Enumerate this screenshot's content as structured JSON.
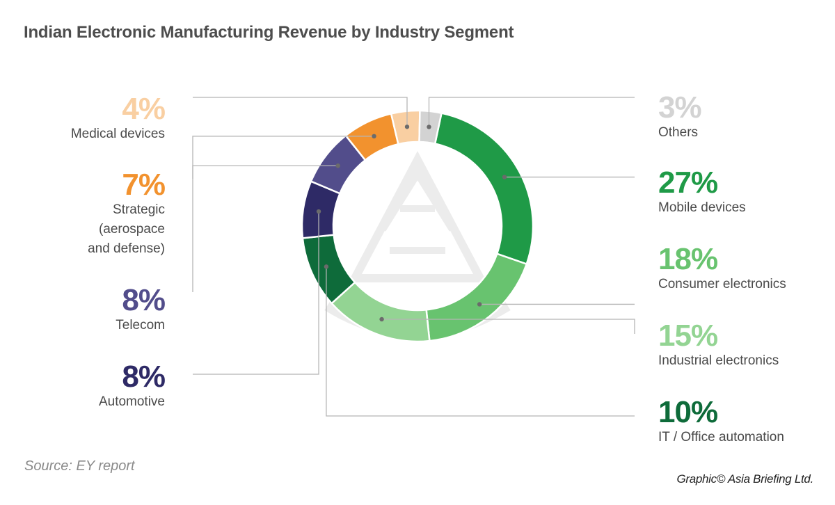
{
  "chart_data": {
    "type": "pie",
    "style": "donut",
    "title": "Indian Electronic Manufacturing Revenue by Industry Segment",
    "unit": "%",
    "slices": [
      {
        "label": "Mobile devices",
        "value": 27,
        "value_text": "27%",
        "color": "#1f9a47"
      },
      {
        "label": "Consumer electronics",
        "value": 18,
        "value_text": "18%",
        "color": "#68c36f"
      },
      {
        "label": "Industrial electronics",
        "value": 15,
        "value_text": "15%",
        "color": "#93d493"
      },
      {
        "label": "IT / Office automation",
        "value": 10,
        "value_text": "10%",
        "color": "#0e6b3a"
      },
      {
        "label": "Automotive",
        "value": 8,
        "value_text": "8%",
        "color": "#2e2a66"
      },
      {
        "label": "Telecom",
        "value": 8,
        "value_text": "8%",
        "color": "#524d8b"
      },
      {
        "label": "Strategic \n(aerospace\nand defense)",
        "value": 7,
        "value_text": "7%",
        "color": "#f2922e"
      },
      {
        "label": "Medical devices",
        "value": 4,
        "value_text": "4%",
        "color": "#f9cfa2"
      },
      {
        "label": "Others",
        "value": 3,
        "value_text": "3%",
        "color": "#d3d3d3"
      }
    ]
  },
  "footer": {
    "source": "Source: EY report",
    "credit": "Graphic© Asia Briefing Ltd."
  },
  "colors": {
    "background": "#ffffff",
    "title": "#4d4d4d",
    "leader_line": "#b5b5b5",
    "watermark": "#ececec"
  }
}
